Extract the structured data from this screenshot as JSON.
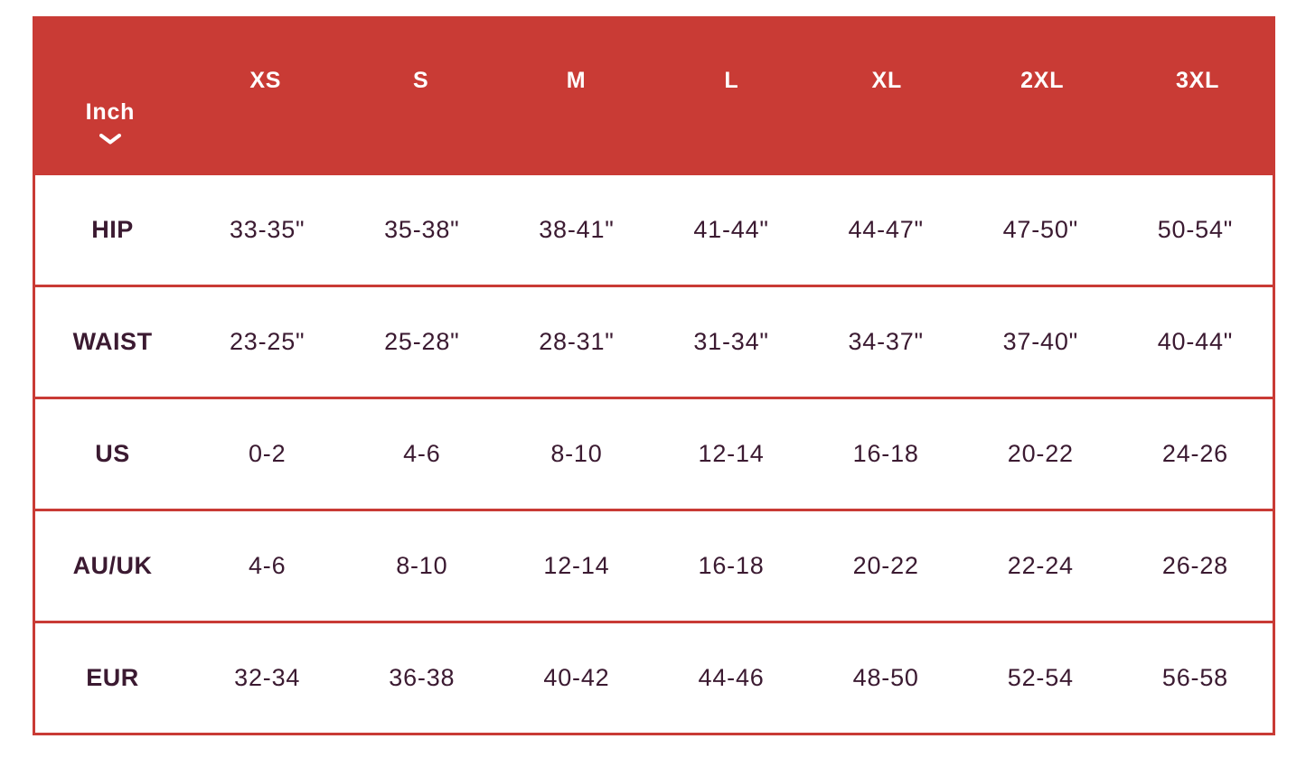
{
  "size_chart": {
    "unit_selector": {
      "value": "Inch",
      "icon": "chevron-down"
    },
    "columns": [
      "XS",
      "S",
      "M",
      "L",
      "XL",
      "2XL",
      "3XL"
    ],
    "rows": [
      {
        "label": "HIP",
        "values": [
          "33-35\"",
          "35-38\"",
          "38-41\"",
          "41-44\"",
          "44-47\"",
          "47-50\"",
          "50-54\""
        ]
      },
      {
        "label": "WAIST",
        "values": [
          "23-25\"",
          "25-28\"",
          "28-31\"",
          "31-34\"",
          "34-37\"",
          "37-40\"",
          "40-44\""
        ]
      },
      {
        "label": "US",
        "values": [
          "0-2",
          "4-6",
          "8-10",
          "12-14",
          "16-18",
          "20-22",
          "24-26"
        ]
      },
      {
        "label": "AU/UK",
        "values": [
          "4-6",
          "8-10",
          "12-14",
          "16-18",
          "20-22",
          "22-24",
          "26-28"
        ]
      },
      {
        "label": "EUR",
        "values": [
          "32-34",
          "36-38",
          "40-42",
          "44-46",
          "48-50",
          "52-54",
          "56-58"
        ]
      }
    ],
    "colors": {
      "header_bg": "#C93B35",
      "header_text": "#FFFFFF",
      "border": "#C93B35",
      "cell_text": "#3B1A31"
    }
  }
}
